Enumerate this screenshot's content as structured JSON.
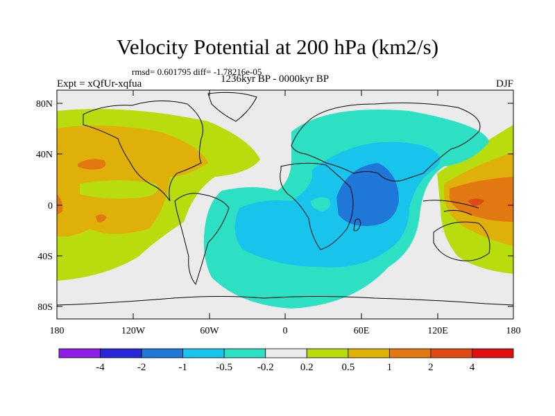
{
  "title": "Velocity Potential at 200 hPa (km2/s)",
  "stats": "rmsd= 0.601795 diff= -1.78216e-05",
  "experiment": "Expt = xQfUr-xqfua",
  "period": "1236kyr BP - 0000kyr BP",
  "season": "DJF",
  "lat_ticks": [
    "80N",
    "40N",
    "0",
    "40S",
    "80S"
  ],
  "lon_ticks": [
    "180",
    "120W",
    "60W",
    "0",
    "60E",
    "120E",
    "180"
  ],
  "colorbar": {
    "labels": [
      "-4",
      "-2",
      "-1",
      "-0.5",
      "-0.2",
      "0.2",
      "0.5",
      "1",
      "2",
      "4"
    ],
    "colors": [
      "#8f1fe6",
      "#2828d8",
      "#1f78d8",
      "#18c4ec",
      "#2de0c4",
      "#ebebeb",
      "#b8dc0e",
      "#e0b00a",
      "#e27812",
      "#e04a16",
      "#e01010"
    ]
  },
  "field_colors": {
    "background": "#ebebeb",
    "neutral": "#ebebeb",
    "positive_light": "#b8dc0e",
    "positive_mid": "#e0b00a",
    "positive_strong": "#e27812",
    "negative_light": "#2de0c4",
    "negative_mid": "#18c4ec",
    "negative_strong": "#1f78d8"
  }
}
